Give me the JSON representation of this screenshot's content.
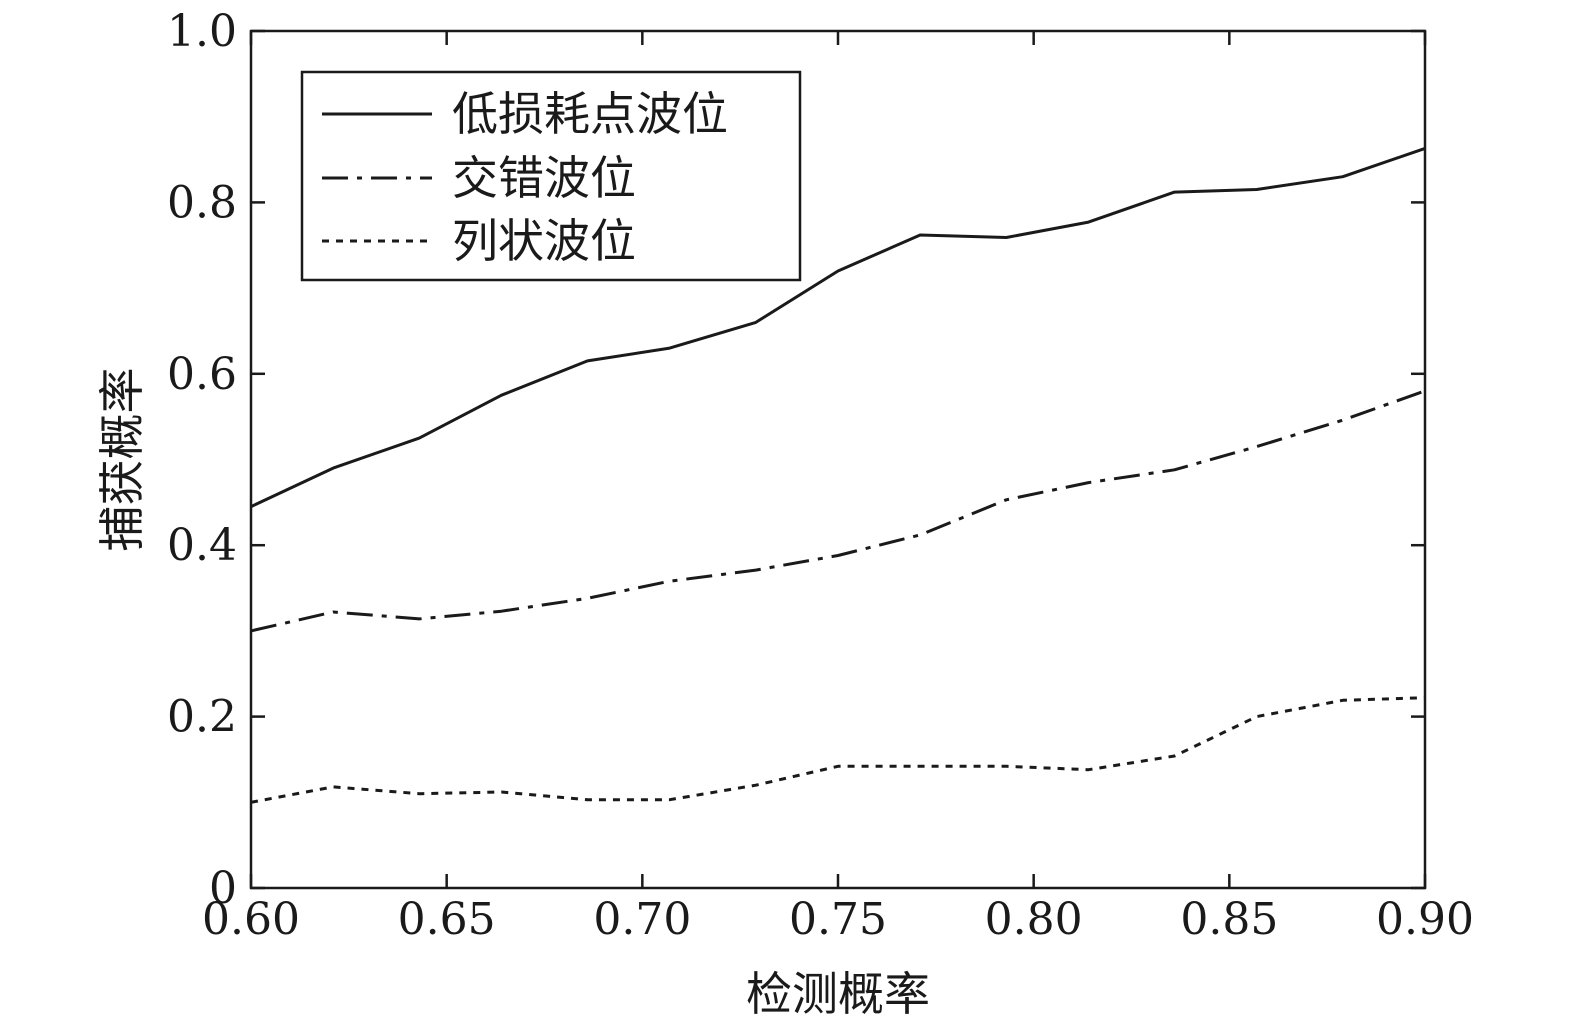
{
  "chart_data": {
    "type": "line",
    "title": "",
    "xlabel": "检测概率",
    "ylabel": "捕获概率",
    "xlim": [
      0.6,
      0.9
    ],
    "ylim": [
      0,
      1.0
    ],
    "grid": false,
    "legend_position": "top-left",
    "x_ticks": [
      "0.60",
      "0.65",
      "0.70",
      "0.75",
      "0.80",
      "0.85",
      "0.90"
    ],
    "y_ticks": [
      "0",
      "0.2",
      "0.4",
      "0.6",
      "0.8",
      "1.0"
    ],
    "x": [
      0.6,
      0.621,
      0.643,
      0.664,
      0.686,
      0.707,
      0.729,
      0.75,
      0.771,
      0.793,
      0.814,
      0.836,
      0.857,
      0.879,
      0.9
    ],
    "series": [
      {
        "name": "低损耗点波位",
        "style": "solid",
        "color": "#1a1a1a",
        "values": [
          0.445,
          0.49,
          0.525,
          0.575,
          0.615,
          0.63,
          0.66,
          0.72,
          0.762,
          0.759,
          0.777,
          0.812,
          0.815,
          0.83,
          0.863
        ]
      },
      {
        "name": "交错波位",
        "style": "dashdot",
        "color": "#1a1a1a",
        "values": [
          0.3,
          0.322,
          0.314,
          0.323,
          0.338,
          0.358,
          0.371,
          0.388,
          0.412,
          0.453,
          0.473,
          0.488,
          0.515,
          0.546,
          0.58
        ]
      },
      {
        "name": "列状波位",
        "style": "dotted",
        "color": "#1a1a1a",
        "values": [
          0.1,
          0.118,
          0.11,
          0.112,
          0.103,
          0.103,
          0.12,
          0.142,
          0.142,
          0.142,
          0.138,
          0.154,
          0.2,
          0.219,
          0.222
        ]
      }
    ]
  }
}
